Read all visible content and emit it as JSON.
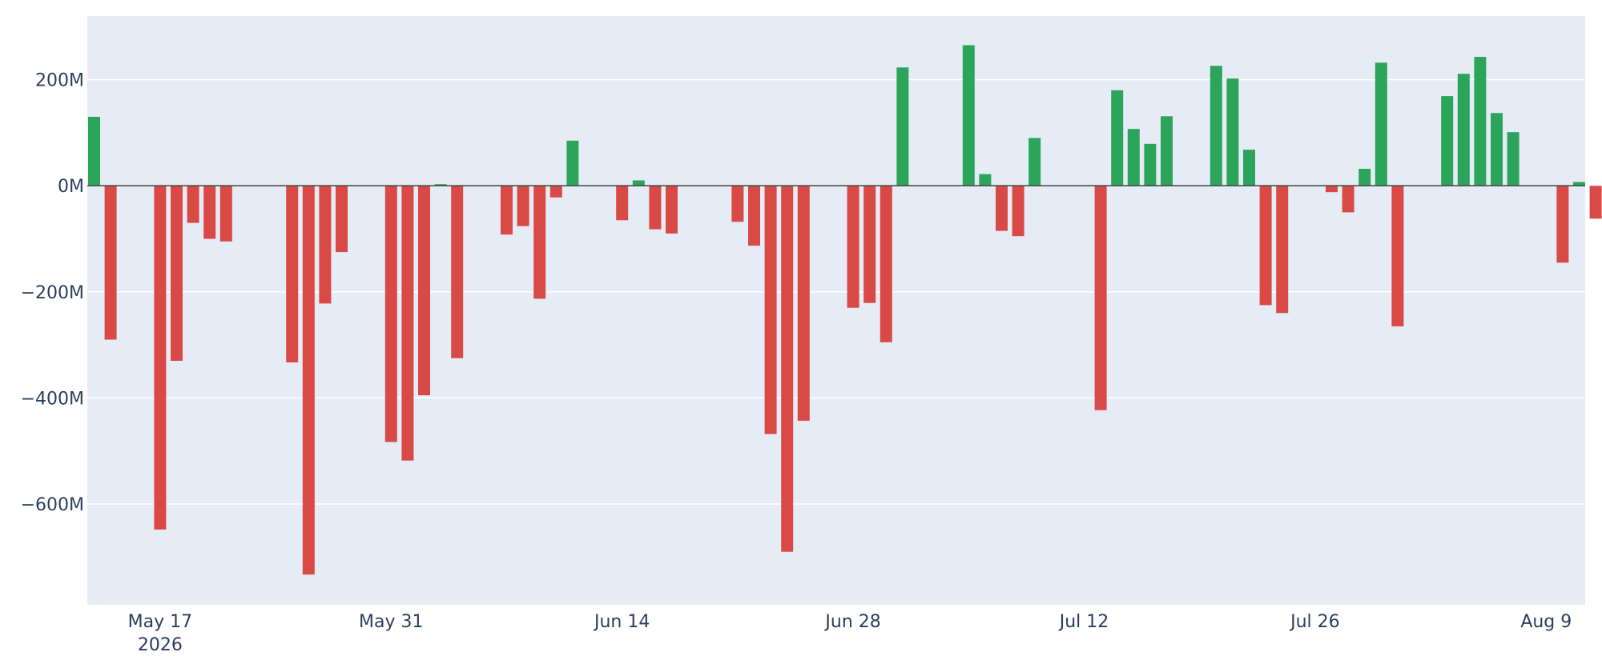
{
  "chart_data": {
    "type": "bar",
    "title": "",
    "xlabel": "",
    "ylabel": "",
    "ylim": [
      -790,
      320
    ],
    "grid": true,
    "legend": "none",
    "colors": {
      "positive": "#2ca55a",
      "negative": "#d94946",
      "plot_bg": "#e5ecf6",
      "grid": "#ffffff",
      "zero_line": "#444444",
      "text": "#2a3f5f"
    },
    "x_start_date": "2026-05-13",
    "x_ticks": [
      {
        "date": "2026-05-17",
        "label": "May 17",
        "sublabel": "2026"
      },
      {
        "date": "2026-05-31",
        "label": "May 31",
        "sublabel": ""
      },
      {
        "date": "2026-06-14",
        "label": "Jun 14",
        "sublabel": ""
      },
      {
        "date": "2026-06-28",
        "label": "Jun 28",
        "sublabel": ""
      },
      {
        "date": "2026-07-12",
        "label": "Jul 12",
        "sublabel": ""
      },
      {
        "date": "2026-07-26",
        "label": "Jul 26",
        "sublabel": ""
      },
      {
        "date": "2026-08-09",
        "label": "Aug 9",
        "sublabel": ""
      }
    ],
    "y_ticks": [
      {
        "value": 200,
        "label": "200M"
      },
      {
        "value": 0,
        "label": "0M"
      },
      {
        "value": -200,
        "label": "−200M"
      },
      {
        "value": -400,
        "label": "−400M"
      },
      {
        "value": -600,
        "label": "−600M"
      }
    ],
    "bars": [
      {
        "date": "2026-05-13",
        "value": 130
      },
      {
        "date": "2026-05-14",
        "value": -290
      },
      {
        "date": "2026-05-17",
        "value": -648
      },
      {
        "date": "2026-05-18",
        "value": -330
      },
      {
        "date": "2026-05-19",
        "value": -70
      },
      {
        "date": "2026-05-20",
        "value": -100
      },
      {
        "date": "2026-05-21",
        "value": -105
      },
      {
        "date": "2026-05-25",
        "value": -333
      },
      {
        "date": "2026-05-26",
        "value": -733
      },
      {
        "date": "2026-05-27",
        "value": -222
      },
      {
        "date": "2026-05-28",
        "value": -125
      },
      {
        "date": "2026-05-31",
        "value": -483
      },
      {
        "date": "2026-06-01",
        "value": -518
      },
      {
        "date": "2026-06-02",
        "value": -395
      },
      {
        "date": "2026-06-03",
        "value": 3
      },
      {
        "date": "2026-06-04",
        "value": -325
      },
      {
        "date": "2026-06-07",
        "value": -92
      },
      {
        "date": "2026-06-08",
        "value": -76
      },
      {
        "date": "2026-06-09",
        "value": -213
      },
      {
        "date": "2026-06-10",
        "value": -22
      },
      {
        "date": "2026-06-11",
        "value": 85
      },
      {
        "date": "2026-06-14",
        "value": -65
      },
      {
        "date": "2026-06-15",
        "value": 10
      },
      {
        "date": "2026-06-16",
        "value": -82
      },
      {
        "date": "2026-06-17",
        "value": -90
      },
      {
        "date": "2026-06-21",
        "value": -68
      },
      {
        "date": "2026-06-22",
        "value": -113
      },
      {
        "date": "2026-06-23",
        "value": -468
      },
      {
        "date": "2026-06-24",
        "value": -690
      },
      {
        "date": "2026-06-25",
        "value": -443
      },
      {
        "date": "2026-06-28",
        "value": -230
      },
      {
        "date": "2026-06-29",
        "value": -221
      },
      {
        "date": "2026-06-30",
        "value": -295
      },
      {
        "date": "2026-07-01",
        "value": 223
      },
      {
        "date": "2026-07-05",
        "value": 265
      },
      {
        "date": "2026-07-06",
        "value": 22
      },
      {
        "date": "2026-07-07",
        "value": -85
      },
      {
        "date": "2026-07-08",
        "value": -95
      },
      {
        "date": "2026-07-09",
        "value": 90
      },
      {
        "date": "2026-07-13",
        "value": -423
      },
      {
        "date": "2026-07-14",
        "value": 180
      },
      {
        "date": "2026-07-15",
        "value": 107
      },
      {
        "date": "2026-07-16",
        "value": 79
      },
      {
        "date": "2026-07-17",
        "value": 131
      },
      {
        "date": "2026-07-20",
        "value": 226
      },
      {
        "date": "2026-07-21",
        "value": 202
      },
      {
        "date": "2026-07-22",
        "value": 68
      },
      {
        "date": "2026-07-23",
        "value": -225
      },
      {
        "date": "2026-07-24",
        "value": -240
      },
      {
        "date": "2026-07-27",
        "value": -12
      },
      {
        "date": "2026-07-28",
        "value": -50
      },
      {
        "date": "2026-07-29",
        "value": 32
      },
      {
        "date": "2026-07-30",
        "value": 232
      },
      {
        "date": "2026-07-31",
        "value": -265
      },
      {
        "date": "2026-08-03",
        "value": 169
      },
      {
        "date": "2026-08-04",
        "value": 211
      },
      {
        "date": "2026-08-05",
        "value": 243
      },
      {
        "date": "2026-08-06",
        "value": 137
      },
      {
        "date": "2026-08-07",
        "value": 101
      },
      {
        "date": "2026-08-10",
        "value": -145
      },
      {
        "date": "2026-08-11",
        "value": 7
      },
      {
        "date": "2026-08-12",
        "value": -62
      }
    ]
  }
}
